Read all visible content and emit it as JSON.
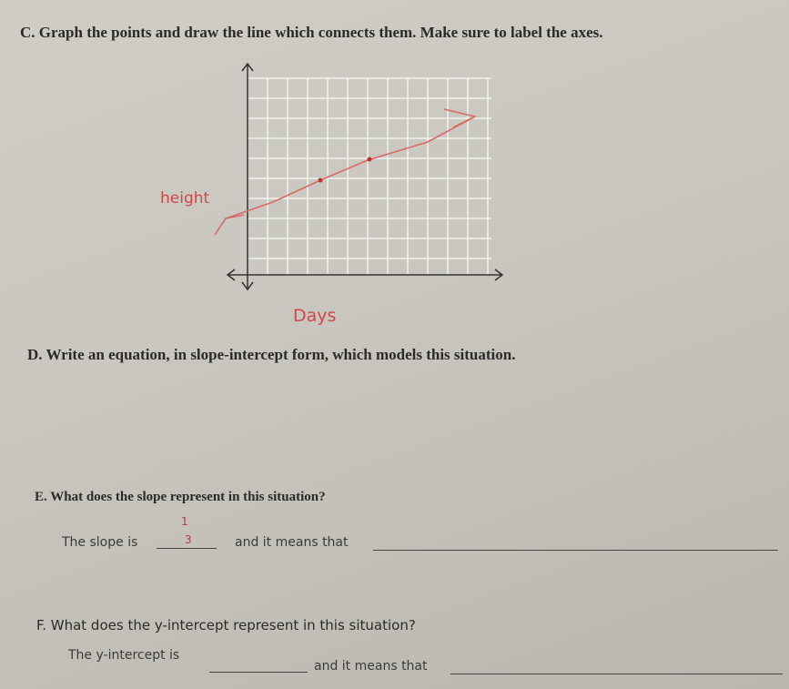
{
  "questions": [
    {
      "text": "C. Graph the points and draw the line which connects them. Make sure to label the axes."
    },
    {
      "text": "D. Write an equation, in slope-intercept form, which models this situation."
    },
    {
      "text": "E. What does the slope represent in this situation?"
    },
    {
      "text": "F. What does the y-intercept represent in this situation?"
    }
  ],
  "graph": {
    "y_axis_label": "height",
    "x_axis_label": "Days"
  },
  "slope": {
    "prefix": "The slope is",
    "answer_numerator": "1",
    "answer_denominator": "3",
    "middle": "and it means that"
  },
  "intercept": {
    "prefix": "The y-intercept is",
    "middle": "and it means that"
  }
}
